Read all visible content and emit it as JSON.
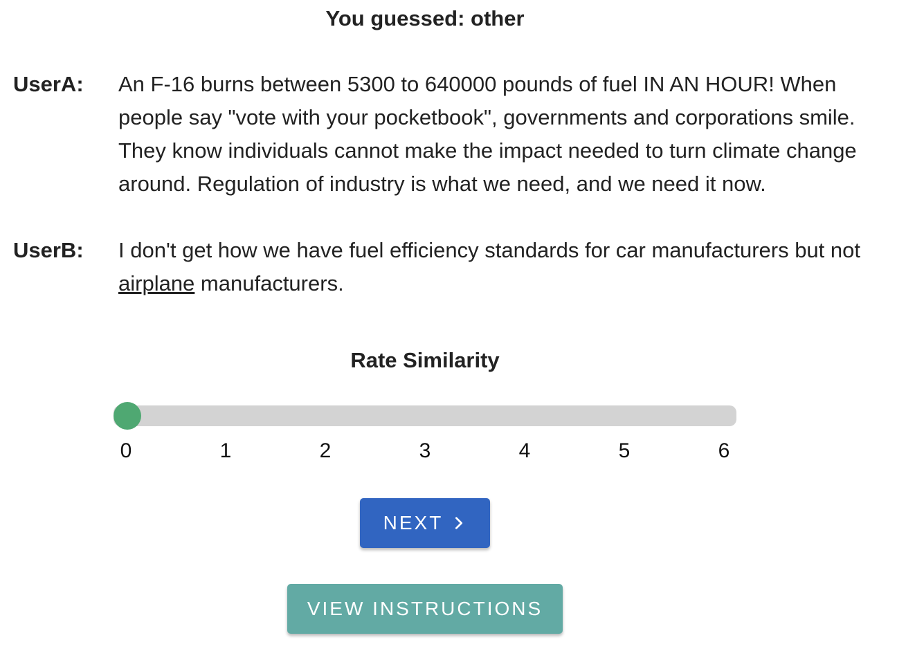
{
  "header": {
    "guess_text": "You guessed: other"
  },
  "messages": [
    {
      "speaker": "UserA:",
      "text": "An F-16 burns between 5300 to 640000 pounds of fuel IN AN HOUR! When people say \"vote with your pocketbook\", governments and corporations smile. They know individuals cannot make the impact needed to turn climate change around. Regulation of industry is what we need, and we need it now."
    },
    {
      "speaker": "UserB:",
      "text_before": "I don't get how we have fuel efficiency standards for car manufacturers but not ",
      "text_underlined": "airplane",
      "text_after": " manufacturers."
    }
  ],
  "rating": {
    "title": "Rate Similarity",
    "min": 0,
    "max": 6,
    "value": 0,
    "ticks": [
      "0",
      "1",
      "2",
      "3",
      "4",
      "5",
      "6"
    ],
    "thumb_color": "#4fa872",
    "track_color": "#d3d3d3"
  },
  "buttons": {
    "next_label": "NEXT",
    "next_icon": "chevron-right-icon",
    "next_color": "#3165c1",
    "instructions_label": "VIEW INSTRUCTIONS",
    "instructions_color": "#62aaa4"
  }
}
